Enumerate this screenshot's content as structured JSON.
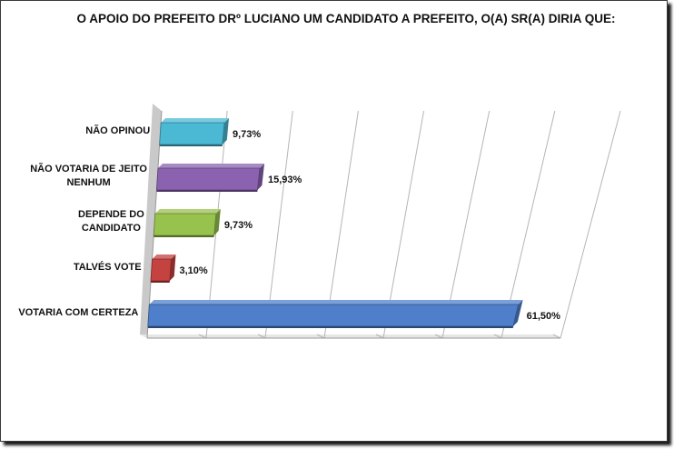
{
  "chart_data": {
    "type": "bar",
    "orientation": "horizontal",
    "title": "O APOIO DO PREFEITO DRº LUCIANO UM CANDIDATO A PREFEITO, O(A) SR(A) DIRIA QUE:",
    "categories": [
      "NÃO OPINOU",
      "NÃO VOTARIA DE JEITO NENHUM",
      "DEPENDE DO CANDIDATO",
      "TALVÉS VOTE",
      "VOTARIA COM CERTEZA"
    ],
    "category_lines": [
      [
        "NÃO OPINOU"
      ],
      [
        "NÃO VOTARIA DE JEITO",
        "NENHUM"
      ],
      [
        "DEPENDE DO",
        "CANDIDATO"
      ],
      [
        "TALVÉS VOTE"
      ],
      [
        "VOTARIA COM CERTEZA"
      ]
    ],
    "values": [
      9.73,
      15.93,
      9.73,
      3.1,
      61.5
    ],
    "value_labels": [
      "9,73%",
      "15,93%",
      "9,73%",
      "3,10%",
      "61,50%"
    ],
    "colors": [
      "#4bb8d4",
      "#8a62b0",
      "#98c24e",
      "#c44240",
      "#4f7fcb"
    ],
    "xlim": [
      0,
      70
    ],
    "grid": true,
    "legend": "none"
  }
}
